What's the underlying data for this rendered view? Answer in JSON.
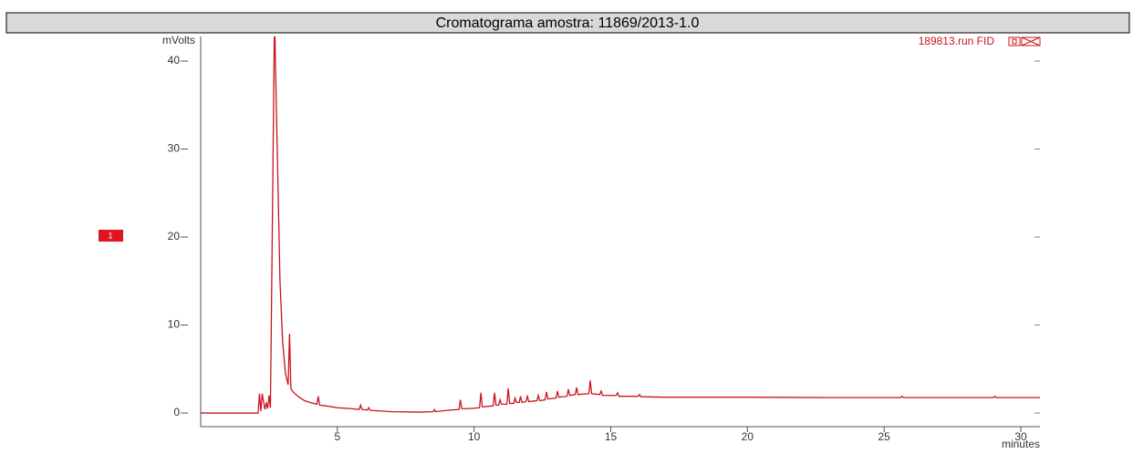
{
  "chart_data": {
    "type": "line",
    "title": "Cromatograma amostra: 11869/2013-1.0",
    "y_label": "mVolts",
    "x_label": "minutes",
    "annotation": "189813.run FID",
    "peak_marker": "1",
    "xlim": [
      0,
      30.7
    ],
    "ylim": [
      -1.55,
      42.8
    ],
    "xticks": [
      5,
      10,
      15,
      20,
      25,
      30
    ],
    "yticks": [
      0,
      10,
      20,
      30,
      40
    ],
    "x": [
      0,
      2.1,
      2.15,
      2.2,
      2.25,
      2.35,
      2.4,
      2.45,
      2.5,
      2.55,
      2.6,
      2.7,
      2.8,
      2.9,
      3.0,
      3.1,
      3.2,
      3.25,
      3.3,
      3.35,
      3.45,
      3.6,
      3.8,
      4.0,
      4.25,
      4.3,
      4.35,
      4.6,
      5.0,
      5.5,
      5.8,
      5.85,
      5.9,
      6.1,
      6.15,
      6.2,
      7,
      8,
      8.5,
      8.55,
      8.6,
      9,
      9.45,
      9.5,
      9.55,
      9.8,
      10.2,
      10.25,
      10.3,
      10.7,
      10.75,
      10.8,
      10.9,
      10.95,
      11.0,
      11.2,
      11.25,
      11.3,
      11.45,
      11.5,
      11.55,
      11.65,
      11.7,
      11.75,
      11.9,
      11.95,
      12.0,
      12.3,
      12.35,
      12.4,
      12.6,
      12.65,
      12.7,
      13.0,
      13.05,
      13.1,
      13.4,
      13.45,
      13.5,
      13.7,
      13.75,
      13.8,
      14.2,
      14.25,
      14.3,
      14.6,
      14.65,
      14.7,
      15.2,
      15.25,
      15.3,
      16,
      16.05,
      16.1,
      17,
      18,
      19.5,
      20,
      23,
      25.6,
      25.65,
      25.7,
      28,
      29.0,
      29.05,
      29.1,
      30.7
    ],
    "series": [
      {
        "color": "#c8141e",
        "values": [
          0,
          0,
          2.2,
          0.2,
          2.2,
          0.4,
          1.2,
          0.5,
          2.0,
          0.6,
          15,
          45,
          30,
          15,
          8,
          4.5,
          3.2,
          9.0,
          2.8,
          2.5,
          2.2,
          1.8,
          1.4,
          1.2,
          1.0,
          1.9,
          0.9,
          0.8,
          0.6,
          0.5,
          0.4,
          0.9,
          0.4,
          0.35,
          0.6,
          0.3,
          0.15,
          0.1,
          0.15,
          0.4,
          0.15,
          0.3,
          0.4,
          1.5,
          0.5,
          0.5,
          0.6,
          2.3,
          0.7,
          0.8,
          2.3,
          0.9,
          0.9,
          1.5,
          1.0,
          1.0,
          2.8,
          1.1,
          1.1,
          1.7,
          1.2,
          1.2,
          1.9,
          1.2,
          1.3,
          1.9,
          1.3,
          1.4,
          2.0,
          1.4,
          1.5,
          2.4,
          1.6,
          1.7,
          2.5,
          1.8,
          1.9,
          2.7,
          2.0,
          2.1,
          2.9,
          2.1,
          2.2,
          3.7,
          2.2,
          2.1,
          2.5,
          2.0,
          2.0,
          2.3,
          1.9,
          1.9,
          2.1,
          1.85,
          1.8,
          1.8,
          1.8,
          1.8,
          1.75,
          1.75,
          1.9,
          1.75,
          1.75,
          1.75,
          1.9,
          1.75,
          1.75
        ]
      }
    ]
  }
}
